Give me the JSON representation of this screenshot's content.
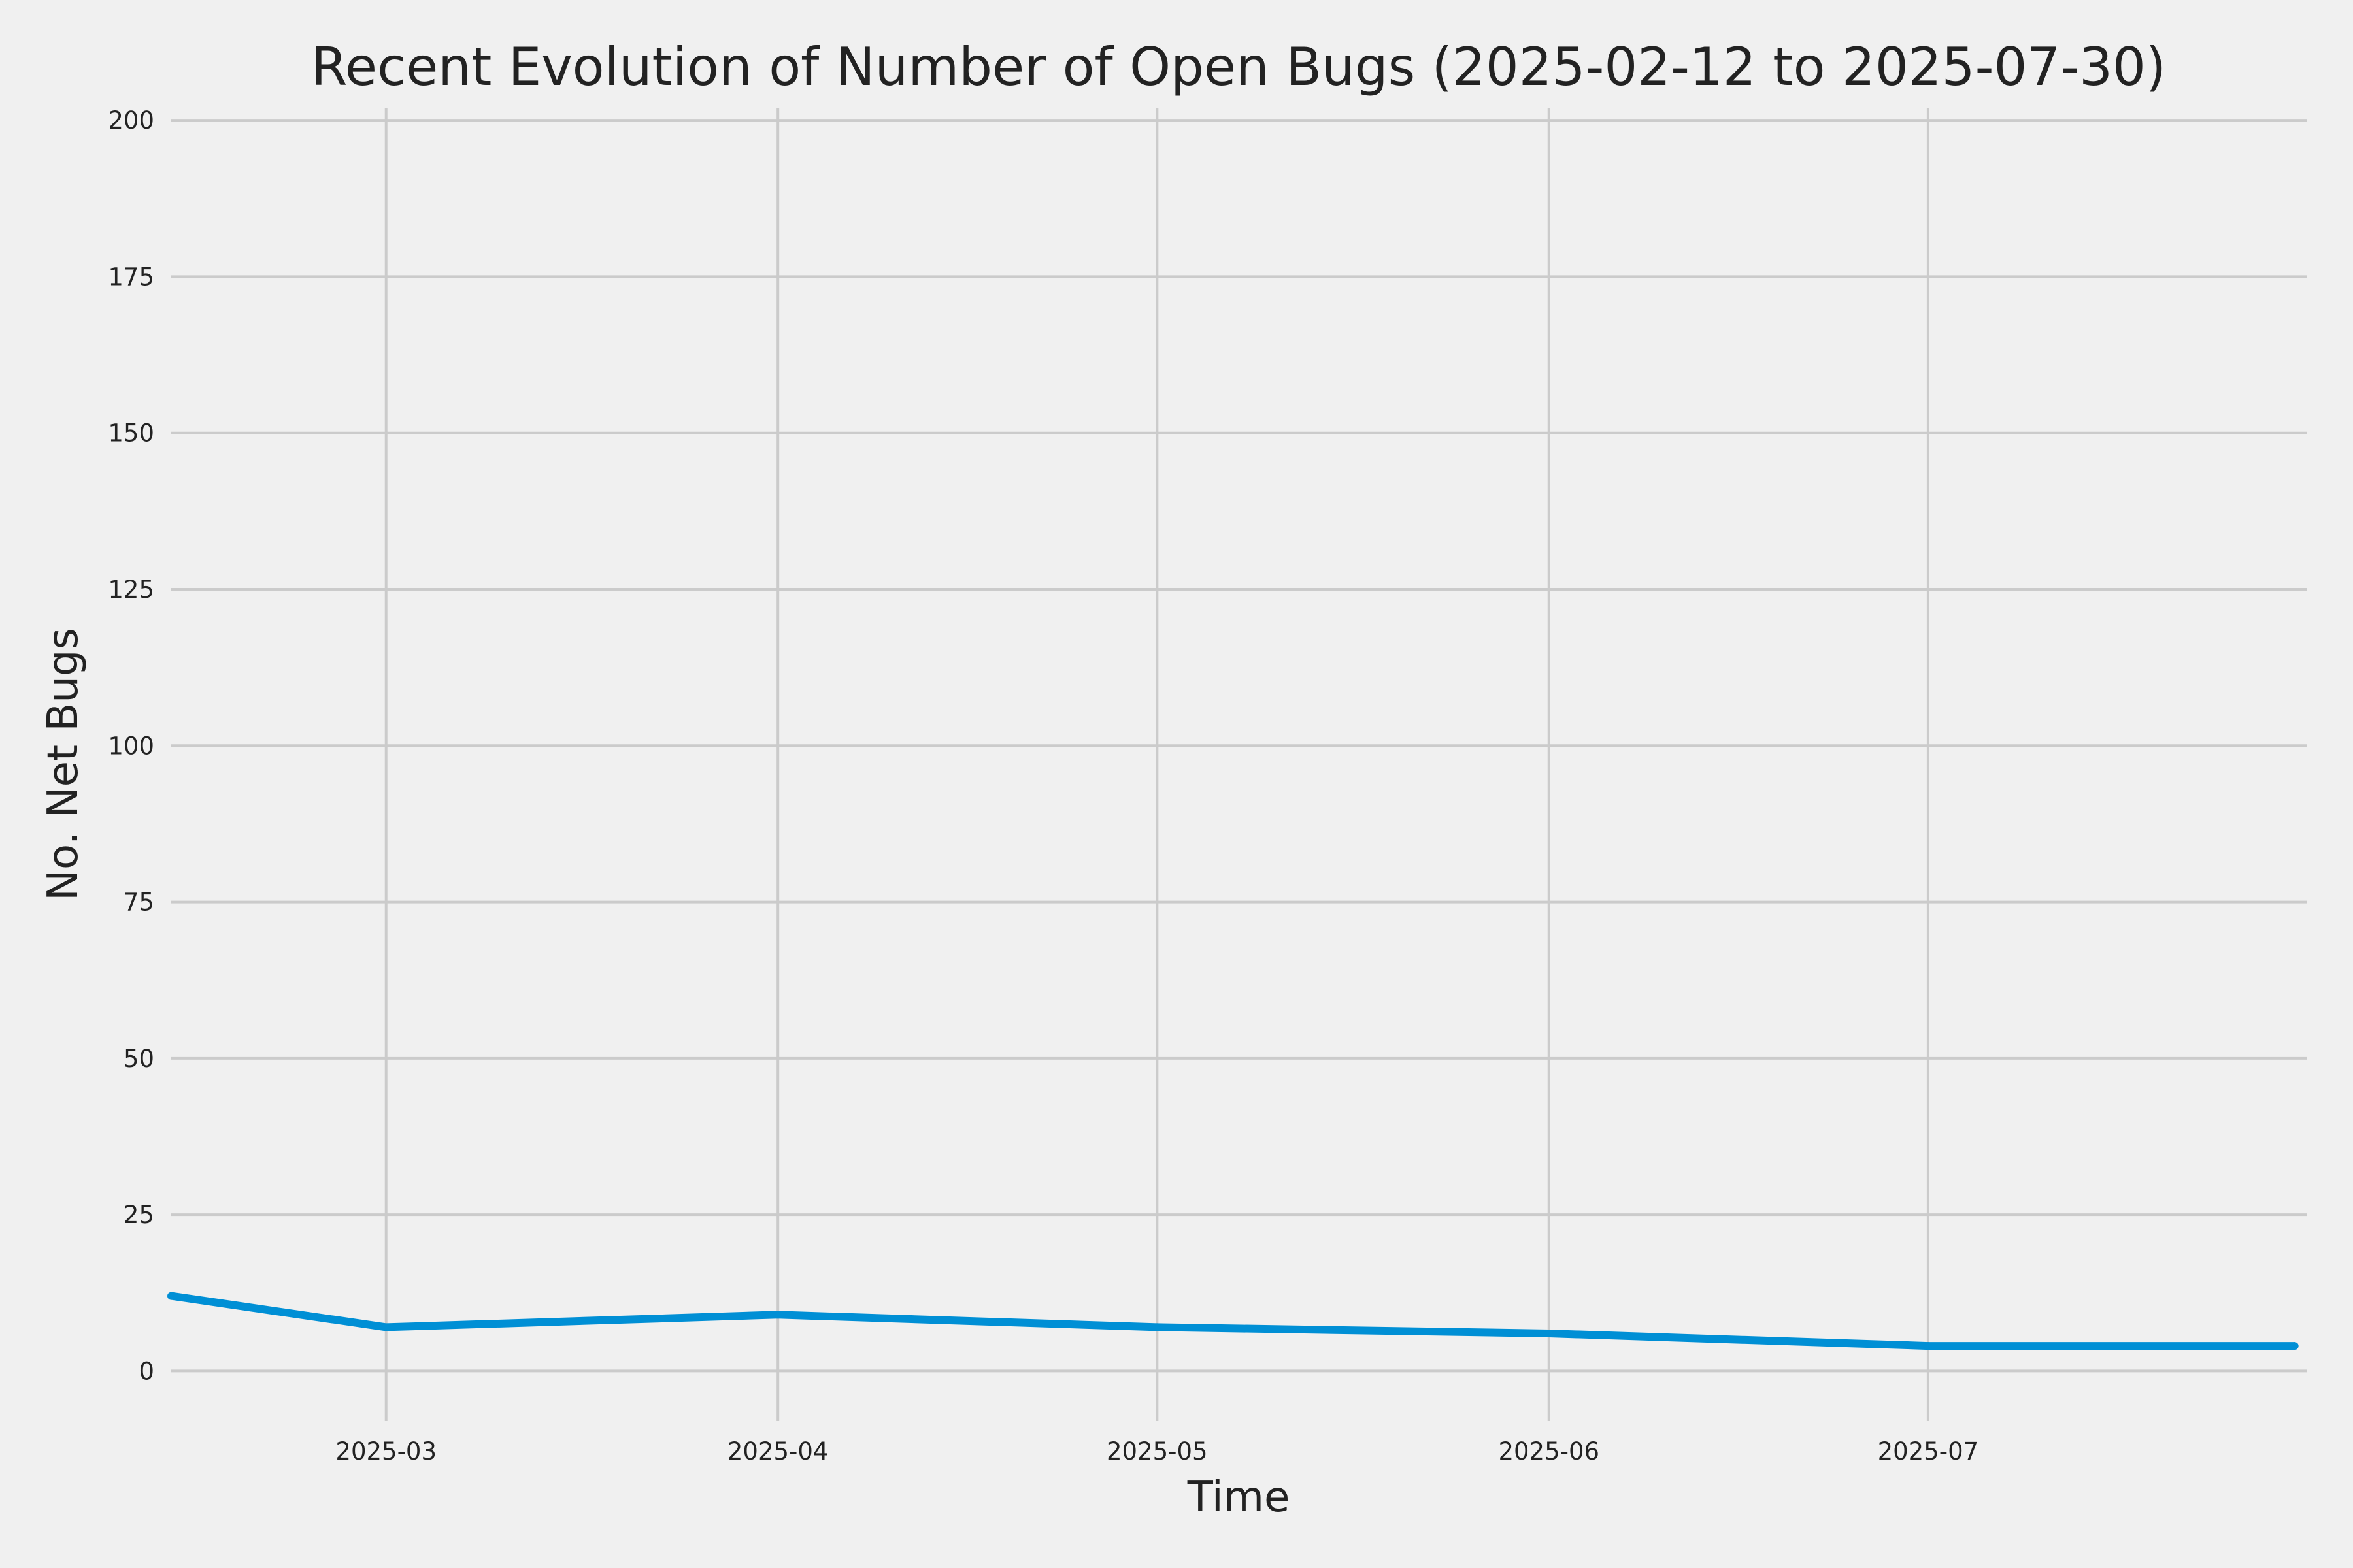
{
  "chart_data": {
    "type": "line",
    "title": "Recent Evolution of Number of Open Bugs (2025-02-12 to 2025-07-30)",
    "xlabel": "Time",
    "ylabel": "No. Net Bugs",
    "xlim": [
      "2025-02-12",
      "2025-07-30"
    ],
    "ylim": [
      -8,
      202
    ],
    "x_ticks": [
      "2025-03-01",
      "2025-04-01",
      "2025-05-01",
      "2025-06-01",
      "2025-07-01"
    ],
    "x_tick_labels": [
      "2025-03",
      "2025-04",
      "2025-05",
      "2025-06",
      "2025-07"
    ],
    "y_ticks": [
      0,
      25,
      50,
      75,
      100,
      125,
      150,
      175,
      200
    ],
    "y_tick_labels": [
      "0",
      "25",
      "50",
      "75",
      "100",
      "125",
      "150",
      "175",
      "200"
    ],
    "grid": true,
    "series": [
      {
        "color": "#008fd5",
        "x": [
          "2025-02-12",
          "2025-03-01",
          "2025-04-01",
          "2025-05-01",
          "2025-06-01",
          "2025-07-01",
          "2025-07-30"
        ],
        "y": [
          12,
          7,
          9,
          7,
          6,
          4,
          4
        ]
      }
    ]
  },
  "style": {
    "background": "#f0f0f0",
    "grid_color": "#cbcbcb",
    "text_color": "#222222"
  }
}
